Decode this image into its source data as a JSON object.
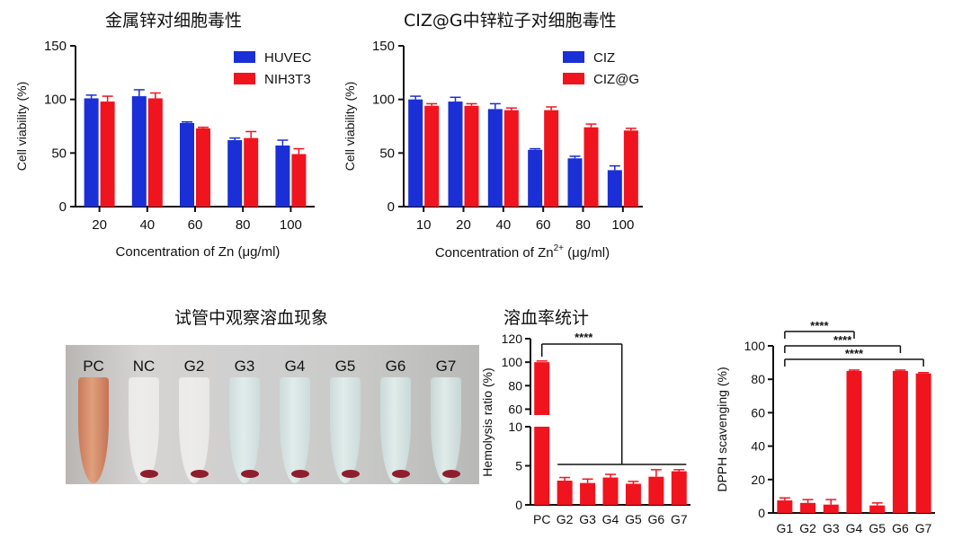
{
  "titles": {
    "chart1": "金属锌对细胞毒性",
    "chart2": "CIZ@G中锌粒子对细胞毒性",
    "photo": "试管中观察溶血现象",
    "chart3": "溶血率统计"
  },
  "colors": {
    "blue": "#1a2fd6",
    "red": "#f0141e",
    "axis": "#111111"
  },
  "photo": {
    "tubes": [
      "PC",
      "NC",
      "G2",
      "G3",
      "G4",
      "G5",
      "G6",
      "G7"
    ]
  },
  "chart_data": [
    {
      "type": "bar",
      "categories": [
        "20",
        "40",
        "60",
        "80",
        "100"
      ],
      "series": [
        {
          "name": "HUVEC",
          "values": [
            101,
            103,
            78,
            62,
            57
          ],
          "errors": [
            3,
            6,
            1,
            2,
            5
          ],
          "color": "#1a2fd6"
        },
        {
          "name": "NIH3T3",
          "values": [
            98,
            101,
            73,
            64,
            49
          ],
          "errors": [
            5,
            5,
            1,
            6,
            5
          ],
          "color": "#f0141e"
        }
      ],
      "xlabel": "Concentration of Zn (μg/ml)",
      "ylabel": "Cell viability (%)",
      "ylim": [
        0,
        150
      ],
      "yticks": [
        0,
        50,
        100,
        150
      ],
      "legend": "top-right"
    },
    {
      "type": "bar",
      "categories": [
        "10",
        "20",
        "40",
        "60",
        "80",
        "100"
      ],
      "series": [
        {
          "name": "CIZ",
          "values": [
            100,
            98,
            91,
            53,
            45,
            34
          ],
          "errors": [
            3,
            4,
            5,
            1,
            2,
            4
          ],
          "color": "#1a2fd6"
        },
        {
          "name": "CIZ@G",
          "values": [
            94,
            94,
            90,
            90,
            74,
            71
          ],
          "errors": [
            2,
            2,
            2,
            3,
            3,
            2
          ],
          "color": "#f0141e"
        }
      ],
      "xlabel": "Concentration of Zn",
      "xlabel_sup": "2+",
      "xlabel_suffix": "(μg/ml)",
      "ylabel": "Cell viability (%)",
      "ylim": [
        0,
        150
      ],
      "yticks": [
        0,
        50,
        100,
        150
      ],
      "legend": "top-right"
    },
    {
      "type": "bar",
      "categories": [
        "PC",
        "G2",
        "G3",
        "G4",
        "G5",
        "G6",
        "G7"
      ],
      "series": [
        {
          "values": [
            100,
            3.1,
            2.8,
            3.5,
            2.7,
            3.6,
            4.3
          ],
          "errors": [
            1,
            0.4,
            0.5,
            0.4,
            0.3,
            0.9,
            0.2
          ],
          "color": "#f0141e"
        }
      ],
      "ylabel": "Hemolysis ratio (%)",
      "broken_axis": {
        "lower": [
          0,
          10
        ],
        "upper": [
          55,
          120
        ]
      },
      "yticks_lower": [
        0,
        5,
        10
      ],
      "yticks_upper": [
        60,
        80,
        100,
        120
      ],
      "significance": {
        "label": "****"
      }
    },
    {
      "type": "bar",
      "categories": [
        "G1",
        "G2",
        "G3",
        "G4",
        "G5",
        "G6",
        "G7"
      ],
      "series": [
        {
          "values": [
            7.5,
            6,
            5,
            85,
            4.5,
            85,
            83.5
          ],
          "errors": [
            1.5,
            2,
            3,
            0.5,
            1.5,
            0.5,
            0.5
          ],
          "color": "#f0141e"
        }
      ],
      "ylabel": "DPPH scavenging (%)",
      "ylim": [
        0,
        100
      ],
      "yticks": [
        0,
        20,
        40,
        60,
        80,
        100
      ],
      "significance": [
        {
          "from": "G1",
          "to": "G4",
          "label": "****"
        },
        {
          "from": "G1",
          "to": "G6",
          "label": "****"
        },
        {
          "from": "G1",
          "to": "G7",
          "label": "****"
        }
      ]
    }
  ]
}
